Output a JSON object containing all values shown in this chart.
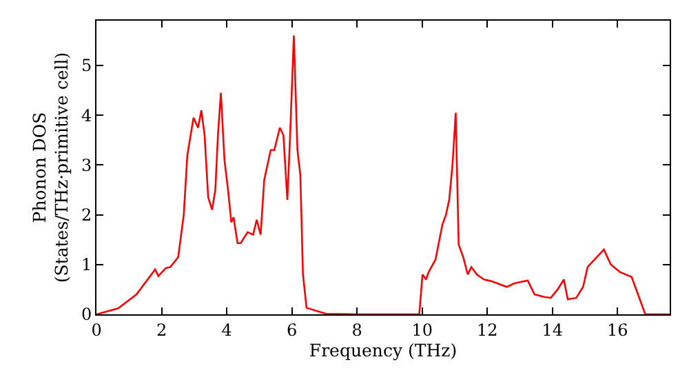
{
  "chart_data": {
    "type": "line",
    "xlabel": "Frequency (THz)",
    "ylabel": "Phonon DOS\n(States/THz·primitive cell)",
    "xlim": [
      0,
      17.6
    ],
    "ylim": [
      0,
      5.9
    ],
    "xticks": [
      0,
      2,
      4,
      6,
      8,
      10,
      12,
      14,
      16
    ],
    "yticks": [
      0,
      1,
      2,
      3,
      4,
      5
    ],
    "marker": "none",
    "line_style": "solid",
    "series": [
      {
        "color": "#ff0000",
        "x": [
          0,
          0.67,
          1.23,
          1.8,
          1.9,
          2.13,
          2.27,
          2.51,
          2.68,
          2.79,
          2.98,
          3.12,
          3.22,
          3.32,
          3.43,
          3.55,
          3.65,
          3.73,
          3.82,
          3.93,
          4.04,
          4.14,
          4.21,
          4.33,
          4.43,
          4.64,
          4.81,
          4.92,
          5.04,
          5.15,
          5.35,
          5.46,
          5.63,
          5.74,
          5.86,
          5.94,
          6.06,
          6.17,
          6.26,
          6.34,
          6.45,
          7.05,
          8,
          9.91,
          10.01,
          10.12,
          10.2,
          10.41,
          10.62,
          10.73,
          10.83,
          10.93,
          11.03,
          11.12,
          11.26,
          11.4,
          11.51,
          11.68,
          11.9,
          12.1,
          12.32,
          12.6,
          12.82,
          13.03,
          13.24,
          13.45,
          13.74,
          13.95,
          14.16,
          14.35,
          14.47,
          14.73,
          14.94,
          15.08,
          15.29,
          15.58,
          15.79,
          16.07,
          16.43,
          16.85,
          17.6
        ],
        "values": [
          0,
          0.12,
          0.4,
          0.9,
          0.77,
          0.93,
          0.95,
          1.15,
          2.0,
          3.2,
          3.95,
          3.75,
          4.1,
          3.6,
          2.35,
          2.1,
          2.5,
          3.6,
          4.45,
          3.1,
          2.5,
          1.85,
          1.95,
          1.43,
          1.43,
          1.65,
          1.6,
          1.9,
          1.6,
          2.7,
          3.3,
          3.3,
          3.75,
          3.6,
          2.3,
          3.5,
          5.6,
          3.3,
          2.8,
          0.8,
          0.13,
          0.01,
          0,
          0,
          0.8,
          0.7,
          0.85,
          1.1,
          1.8,
          2.0,
          2.3,
          3.0,
          4.05,
          1.4,
          1.15,
          0.8,
          0.95,
          0.8,
          0.7,
          0.67,
          0.62,
          0.55,
          0.62,
          0.65,
          0.68,
          0.4,
          0.35,
          0.33,
          0.5,
          0.7,
          0.3,
          0.33,
          0.55,
          0.95,
          1.1,
          1.3,
          1.0,
          0.85,
          0.75,
          0,
          0
        ]
      }
    ]
  }
}
